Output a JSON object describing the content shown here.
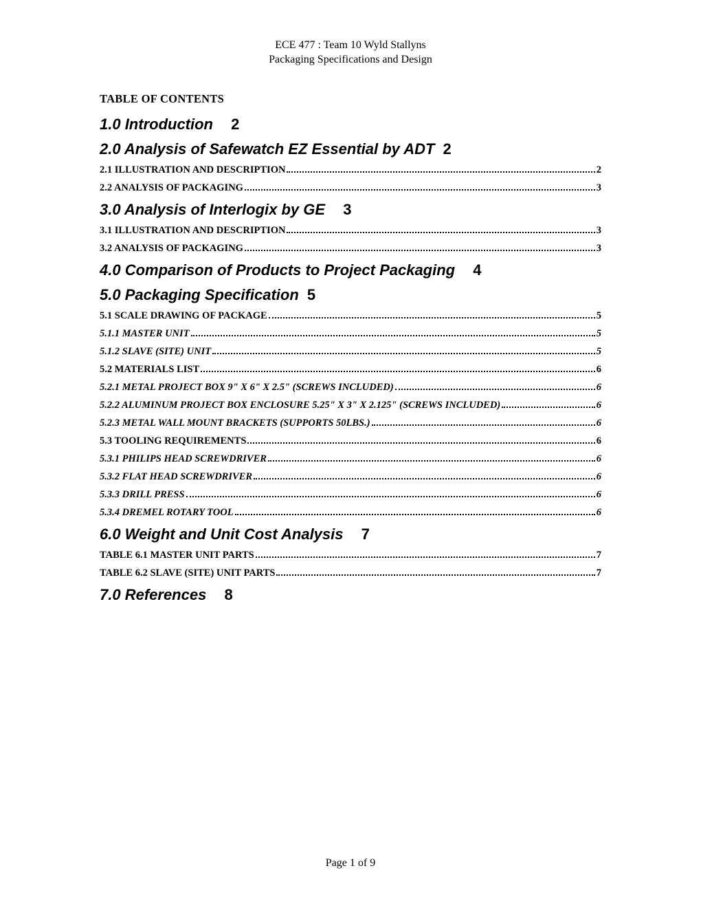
{
  "header": {
    "line1": "ECE 477 : Team 10 Wyld Stallyns",
    "line2": "Packaging Specifications and Design"
  },
  "toc_title": "TABLE OF CONTENTS",
  "sections": {
    "s1": {
      "title": "1.0 Introduction",
      "page": "2"
    },
    "s2": {
      "title": "2.0 Analysis of Safewatch EZ Essential by ADT",
      "page": "2",
      "entries": [
        {
          "label": "2.1 ILLUSTRATION AND DESCRIPTION",
          "page": "2",
          "italic": false
        },
        {
          "label": "2.2 ANALYSIS OF PACKAGING",
          "page": "3",
          "italic": false
        }
      ]
    },
    "s3": {
      "title": "3.0 Analysis of Interlogix by GE",
      "page": "3",
      "entries": [
        {
          "label": "3.1 ILLUSTRATION AND DESCRIPTION",
          "page": "3",
          "italic": false
        },
        {
          "label": "3.2 ANALYSIS OF PACKAGING",
          "page": "3",
          "italic": false
        }
      ]
    },
    "s4": {
      "title": "4.0 Comparison of Products to Project Packaging",
      "page": "4"
    },
    "s5": {
      "title": "5.0 Packaging Specification",
      "page": "5",
      "entries": [
        {
          "label": "5.1 SCALE DRAWING OF PACKAGE",
          "page": "5",
          "italic": false
        },
        {
          "label": "5.1.1 MASTER UNIT",
          "page": "5",
          "italic": true
        },
        {
          "label": "5.1.2 SLAVE (SITE) UNIT",
          "page": "5",
          "italic": true
        },
        {
          "label": "5.2 MATERIALS LIST",
          "page": "6",
          "italic": false
        },
        {
          "label": "5.2.1 METAL PROJECT BOX 9\" X 6\" X 2.5\" (SCREWS INCLUDED)",
          "page": "6",
          "italic": true
        },
        {
          "label": "5.2.2 ALUMINUM PROJECT BOX ENCLOSURE 5.25\" X 3\" X 2.125\" (SCREWS INCLUDED)",
          "page": "6",
          "italic": true
        },
        {
          "label": "5.2.3 METAL WALL MOUNT BRACKETS (SUPPORTS 50LBS.)",
          "page": "6",
          "italic": true
        },
        {
          "label": "5.3 TOOLING REQUIREMENTS",
          "page": "6",
          "italic": false
        },
        {
          "label": "5.3.1 PHILIPS HEAD SCREWDRIVER",
          "page": "6",
          "italic": true
        },
        {
          "label": "5.3.2 FLAT HEAD SCREWDRIVER",
          "page": "6",
          "italic": true
        },
        {
          "label": "5.3.3 DRILL PRESS",
          "page": "6",
          "italic": true
        },
        {
          "label": "5.3.4 DREMEL ROTARY TOOL",
          "page": "6",
          "italic": true
        }
      ]
    },
    "s6": {
      "title": "6.0 Weight and Unit Cost Analysis",
      "page": "7",
      "entries": [
        {
          "label": "TABLE 6.1 MASTER UNIT PARTS",
          "page": "7",
          "italic": false
        },
        {
          "label": "TABLE 6.2 SLAVE (SITE) UNIT PARTS",
          "page": "7",
          "italic": false
        }
      ]
    },
    "s7": {
      "title": "7.0 References",
      "page": "8"
    }
  },
  "footer": "Page 1 of 9"
}
